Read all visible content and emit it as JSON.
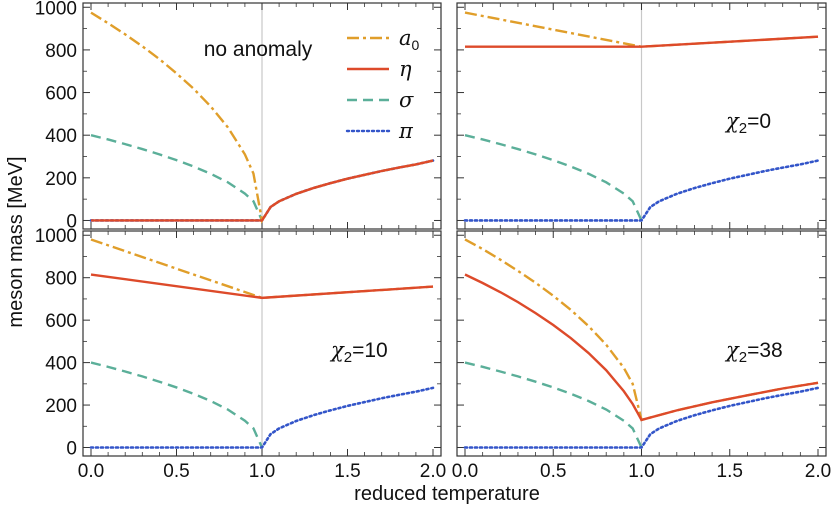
{
  "chart_data": {
    "type": "line",
    "xlabel": "reduced temperature",
    "ylabel": "meson mass [MeV]",
    "xlim": [
      0,
      2
    ],
    "ylim": [
      -40,
      1020
    ],
    "xticks": [
      0.0,
      0.5,
      1.0,
      1.5,
      2.0
    ],
    "xtick_labels": [
      "0.0",
      "0.5",
      "1.0",
      "1.5",
      "2.0"
    ],
    "yticks": [
      0,
      200,
      400,
      600,
      800,
      1000
    ],
    "ytick_labels": [
      "0",
      "200",
      "400",
      "600",
      "800",
      "1000"
    ],
    "critical_line_x": 1.0,
    "legend": {
      "placement": "top-left panel, upper-right",
      "entries": [
        {
          "key": "a0",
          "label": "a",
          "subscript": "0",
          "color": "#E09E2A",
          "dash": "dashdot"
        },
        {
          "key": "eta",
          "label": "η",
          "subscript": "",
          "color": "#DD4A2A",
          "dash": "solid"
        },
        {
          "key": "sigma",
          "label": "σ",
          "subscript": "",
          "color": "#5BAF99",
          "dash": "dashed"
        },
        {
          "key": "pi",
          "label": "π",
          "subscript": "",
          "color": "#3355C9",
          "dash": "dotted"
        }
      ]
    },
    "panels": [
      {
        "annotation": {
          "prefix": "",
          "sub": "",
          "suffix": "no anomaly"
        },
        "series": {
          "a0": {
            "x": [
              0,
              0.1,
              0.2,
              0.3,
              0.4,
              0.5,
              0.6,
              0.7,
              0.8,
              0.9,
              0.95,
              1.0,
              1.05,
              1.1,
              1.2,
              1.3,
              1.4,
              1.5,
              1.6,
              1.7,
              1.8,
              1.9,
              2.0
            ],
            "y": [
              975,
              925,
              873,
              817,
              757,
              690,
              618,
              535,
              437,
              310,
              220,
              0,
              63,
              90,
              125,
              152,
              175,
              196,
              214,
              232,
              248,
              263,
              281
            ]
          },
          "eta": {
            "x": [
              0,
              0.5,
              1.0,
              1.05,
              1.1,
              1.2,
              1.3,
              1.4,
              1.5,
              1.6,
              1.7,
              1.8,
              1.9,
              2.0
            ],
            "y": [
              0,
              0,
              0,
              63,
              90,
              125,
              152,
              175,
              196,
              214,
              232,
              248,
              263,
              281
            ]
          },
          "sigma": {
            "x": [
              0,
              0.1,
              0.2,
              0.3,
              0.4,
              0.5,
              0.6,
              0.7,
              0.8,
              0.9,
              0.95,
              1.0
            ],
            "y": [
              400,
              380,
              358,
              335,
              310,
              283,
              253,
              219,
              179,
              126,
              90,
              0
            ]
          },
          "pi": {
            "x": [
              0,
              0.5,
              1.0,
              1.05,
              1.1,
              1.2,
              1.3,
              1.4,
              1.5,
              1.6,
              1.7,
              1.8,
              1.9,
              2.0
            ],
            "y": [
              0,
              0,
              0,
              63,
              90,
              125,
              152,
              175,
              196,
              214,
              232,
              248,
              263,
              281
            ]
          }
        }
      },
      {
        "annotation": {
          "prefix": "χ",
          "sub": "2",
          "suffix": "=0"
        },
        "series": {
          "a0": {
            "x": [
              0,
              1.0,
              2.0
            ],
            "y": [
              975,
              815,
              862
            ]
          },
          "eta": {
            "x": [
              0,
              1.0,
              2.0
            ],
            "y": [
              815,
              815,
              862
            ]
          },
          "sigma": {
            "x": [
              0,
              0.1,
              0.2,
              0.3,
              0.4,
              0.5,
              0.6,
              0.7,
              0.8,
              0.9,
              0.95,
              1.0
            ],
            "y": [
              400,
              380,
              358,
              335,
              310,
              283,
              253,
              219,
              179,
              126,
              90,
              0
            ]
          },
          "pi": {
            "x": [
              0,
              0.5,
              1.0,
              1.05,
              1.1,
              1.2,
              1.3,
              1.4,
              1.5,
              1.6,
              1.7,
              1.8,
              1.9,
              2.0
            ],
            "y": [
              0,
              0,
              0,
              63,
              90,
              125,
              152,
              175,
              196,
              214,
              232,
              248,
              263,
              281
            ]
          }
        }
      },
      {
        "annotation": {
          "prefix": "χ",
          "sub": "2",
          "suffix": "=10"
        },
        "series": {
          "a0": {
            "x": [
              0,
              1.0,
              2.0
            ],
            "y": [
              980,
              705,
              758
            ]
          },
          "eta": {
            "x": [
              0,
              1.0,
              2.0
            ],
            "y": [
              815,
              705,
              758
            ]
          },
          "sigma": {
            "x": [
              0,
              0.1,
              0.2,
              0.3,
              0.4,
              0.5,
              0.6,
              0.7,
              0.8,
              0.9,
              0.95,
              1.0
            ],
            "y": [
              400,
              380,
              358,
              335,
              310,
              283,
              253,
              219,
              179,
              126,
              90,
              0
            ]
          },
          "pi": {
            "x": [
              0,
              0.5,
              1.0,
              1.05,
              1.1,
              1.2,
              1.3,
              1.4,
              1.5,
              1.6,
              1.7,
              1.8,
              1.9,
              2.0
            ],
            "y": [
              0,
              0,
              0,
              63,
              90,
              125,
              152,
              175,
              196,
              214,
              232,
              248,
              263,
              281
            ]
          }
        }
      },
      {
        "annotation": {
          "prefix": "χ",
          "sub": "2",
          "suffix": "=38"
        },
        "series": {
          "a0": {
            "x": [
              0,
              0.1,
              0.2,
              0.3,
              0.4,
              0.5,
              0.6,
              0.7,
              0.8,
              0.9,
              0.95,
              1.0,
              1.2,
              1.4,
              1.6,
              1.8,
              2.0
            ],
            "y": [
              980,
              935,
              885,
              832,
              776,
              715,
              648,
              572,
              484,
              375,
              300,
              130,
              175,
              213,
              246,
              278,
              305
            ]
          },
          "eta": {
            "x": [
              0,
              0.1,
              0.2,
              0.3,
              0.4,
              0.5,
              0.6,
              0.7,
              0.8,
              0.9,
              0.95,
              1.0,
              1.2,
              1.4,
              1.6,
              1.8,
              2.0
            ],
            "y": [
              815,
              775,
              732,
              685,
              633,
              577,
              515,
              445,
              364,
              265,
              205,
              130,
              175,
              213,
              246,
              278,
              305
            ]
          },
          "sigma": {
            "x": [
              0,
              0.1,
              0.2,
              0.3,
              0.4,
              0.5,
              0.6,
              0.7,
              0.8,
              0.9,
              0.95,
              1.0
            ],
            "y": [
              400,
              380,
              358,
              335,
              310,
              283,
              253,
              219,
              179,
              126,
              90,
              0
            ]
          },
          "pi": {
            "x": [
              0,
              0.5,
              1.0,
              1.05,
              1.1,
              1.2,
              1.3,
              1.4,
              1.5,
              1.6,
              1.7,
              1.8,
              1.9,
              2.0
            ],
            "y": [
              0,
              0,
              0,
              63,
              90,
              125,
              152,
              175,
              196,
              214,
              232,
              248,
              263,
              281
            ]
          }
        }
      }
    ]
  }
}
